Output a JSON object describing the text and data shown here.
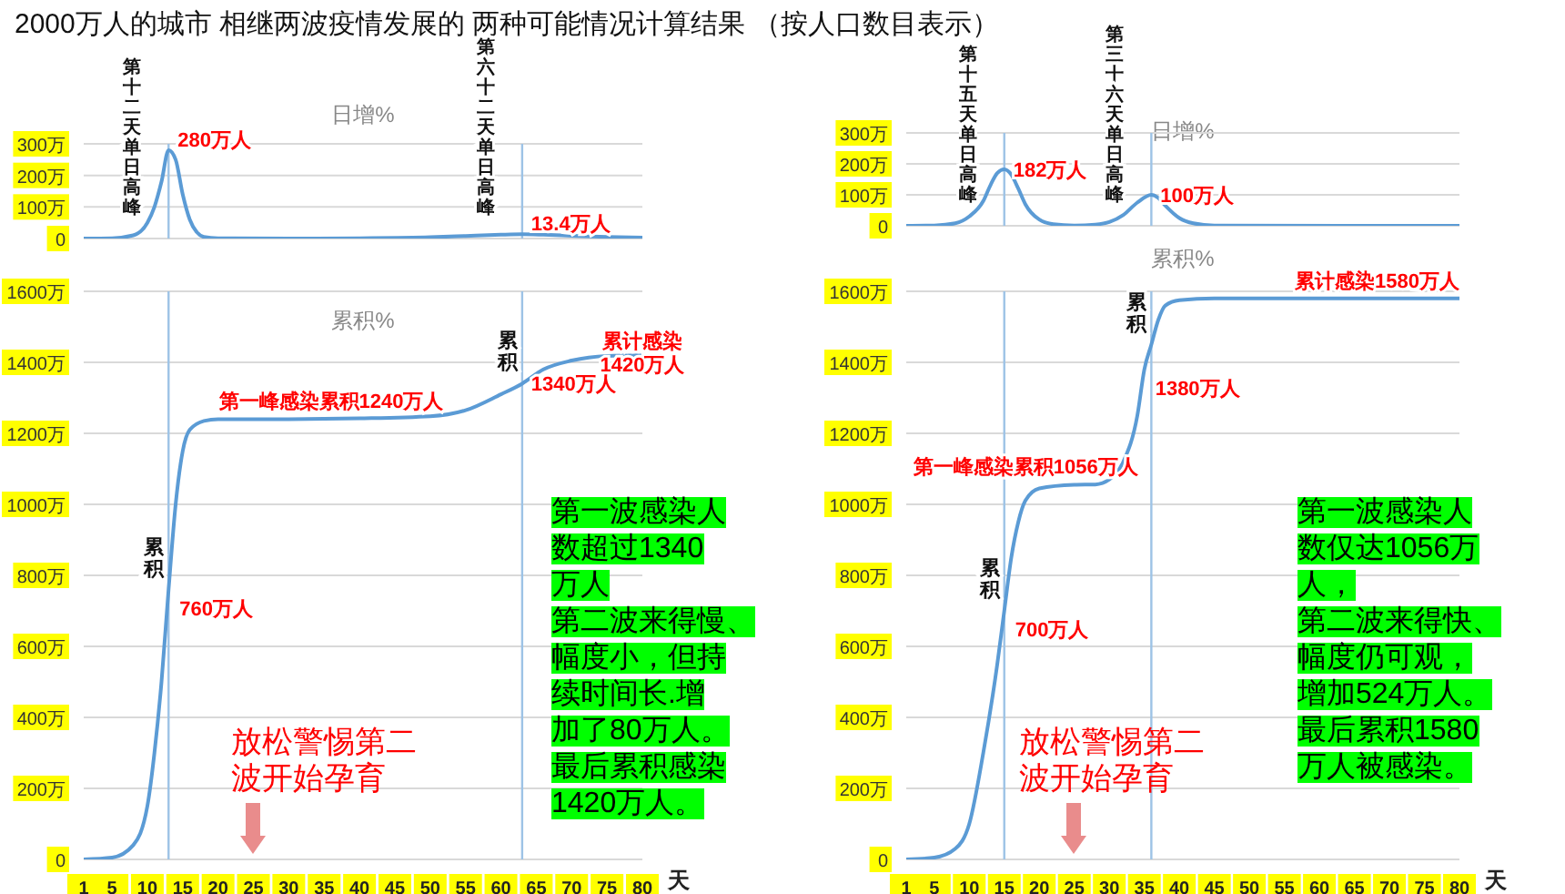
{
  "chart_data": [
    {
      "type": "other",
      "title": "2000万人的城市 相继两波疫情发展的 两种可能情况计算结果 （按人口数目表示）"
    },
    {
      "type": "line",
      "title": "日增%",
      "color": "#5b9bd5",
      "grid": "y",
      "tick_labels": "y",
      "xlim": [
        1,
        80
      ],
      "ylim": [
        0,
        300
      ],
      "yticks": [
        {
          "value": 0,
          "label": "0"
        },
        {
          "value": 100,
          "label": "100万"
        },
        {
          "value": 200,
          "label": "200万"
        },
        {
          "value": 300,
          "label": "300万"
        }
      ],
      "x": [
        1,
        5,
        8,
        10,
        11,
        12,
        13,
        14,
        15,
        16,
        17,
        18,
        20,
        30,
        40,
        50,
        55,
        60,
        63,
        66,
        70,
        75,
        80
      ],
      "values": [
        0,
        1,
        10,
        50,
        100,
        180,
        280,
        250,
        140,
        60,
        20,
        5,
        1,
        0,
        1,
        4,
        8,
        12,
        13.4,
        12,
        9,
        5,
        3
      ],
      "ref_lines": [
        {
          "axis": "x",
          "value": 13,
          "label": "第十二天单日高峰",
          "color": "#9dc3e6"
        },
        {
          "axis": "x",
          "value": 63,
          "label": "第六十二天单日高峰",
          "color": "#9dc3e6"
        }
      ],
      "annotations": [
        {
          "text": "280万人",
          "x": 13,
          "y": 280
        },
        {
          "text": "13.4万人",
          "x": 63,
          "y": 13.4
        }
      ]
    },
    {
      "type": "line",
      "title": "累积%",
      "color": "#5b9bd5",
      "grid": "y",
      "xlabel": "天",
      "xlim": [
        1,
        80
      ],
      "ylim": [
        0,
        1600
      ],
      "xticks": [
        1,
        5,
        10,
        15,
        20,
        25,
        30,
        35,
        40,
        45,
        50,
        55,
        60,
        65,
        70,
        75,
        80
      ],
      "yticks": [
        {
          "value": 0,
          "label": "0"
        },
        {
          "value": 200,
          "label": "200万"
        },
        {
          "value": 400,
          "label": "400万"
        },
        {
          "value": 600,
          "label": "600万"
        },
        {
          "value": 800,
          "label": "800万"
        },
        {
          "value": 1000,
          "label": "1000万"
        },
        {
          "value": 1200,
          "label": "1200万"
        },
        {
          "value": 1400,
          "label": "1400万"
        },
        {
          "value": 1600,
          "label": "1600万"
        }
      ],
      "x": [
        1,
        5,
        8,
        10,
        11,
        12,
        13,
        14,
        15,
        16,
        18,
        20,
        30,
        40,
        50,
        55,
        60,
        63,
        66,
        70,
        75,
        80
      ],
      "values": [
        0,
        5,
        40,
        150,
        300,
        500,
        760,
        1000,
        1150,
        1210,
        1235,
        1240,
        1240,
        1242,
        1248,
        1265,
        1310,
        1340,
        1380,
        1405,
        1418,
        1420
      ],
      "ref_lines": [
        {
          "axis": "x",
          "value": 13,
          "label": "累积",
          "color": "#9dc3e6"
        },
        {
          "axis": "x",
          "value": 63,
          "label": "累积",
          "color": "#9dc3e6"
        }
      ],
      "annotations": [
        {
          "text": "760万人",
          "x": 13,
          "y": 760
        },
        {
          "text": "第一峰感染累积1240万人",
          "x": 36,
          "y": 1240
        },
        {
          "text": "1340万人",
          "x": 63,
          "y": 1340
        },
        {
          "text": "累计感染\n1420万人",
          "x": 80,
          "y": 1420
        },
        "第一波感染人数超过1340万人第二波来得慢、幅度小，但持续时间长.增加了80万人。最后累积感染1420万人。",
        "放松警惕第二波开始孕育"
      ]
    },
    {
      "type": "line",
      "title": "日增%",
      "color": "#5b9bd5",
      "grid": "y",
      "tick_labels": "y",
      "xlim": [
        1,
        80
      ],
      "ylim": [
        0,
        300
      ],
      "yticks": [
        {
          "value": 0,
          "label": "0"
        },
        {
          "value": 100,
          "label": "100万"
        },
        {
          "value": 200,
          "label": "200万"
        },
        {
          "value": 300,
          "label": "300万"
        }
      ],
      "x": [
        1,
        5,
        8,
        10,
        12,
        13,
        14,
        15,
        16,
        17,
        18,
        20,
        22,
        25,
        28,
        30,
        32,
        34,
        36,
        37,
        38,
        40,
        42,
        45,
        80
      ],
      "values": [
        0,
        1,
        8,
        30,
        80,
        130,
        170,
        182,
        165,
        120,
        70,
        20,
        5,
        1,
        4,
        12,
        35,
        75,
        100,
        90,
        65,
        25,
        8,
        1,
        0
      ],
      "ref_lines": [
        {
          "axis": "x",
          "value": 15,
          "label": "第十五天单日高峰",
          "color": "#9dc3e6"
        },
        {
          "axis": "x",
          "value": 36,
          "label": "第三十六天单日高峰",
          "color": "#9dc3e6"
        }
      ],
      "annotations": [
        {
          "text": "182万人",
          "x": 15,
          "y": 182
        },
        {
          "text": "100万人",
          "x": 36,
          "y": 100
        }
      ]
    },
    {
      "type": "line",
      "title": "累积%",
      "color": "#5b9bd5",
      "grid": "y",
      "xlabel": "天",
      "xlim": [
        1,
        80
      ],
      "ylim": [
        0,
        1600
      ],
      "xticks": [
        1,
        5,
        10,
        15,
        20,
        25,
        30,
        35,
        40,
        45,
        50,
        55,
        60,
        65,
        70,
        75,
        80
      ],
      "yticks": [
        {
          "value": 0,
          "label": "0"
        },
        {
          "value": 200,
          "label": "200万"
        },
        {
          "value": 400,
          "label": "400万"
        },
        {
          "value": 600,
          "label": "600万"
        },
        {
          "value": 800,
          "label": "800万"
        },
        {
          "value": 1000,
          "label": "1000万"
        },
        {
          "value": 1200,
          "label": "1200万"
        },
        {
          "value": 1400,
          "label": "1400万"
        },
        {
          "value": 1600,
          "label": "1600万"
        }
      ],
      "x": [
        1,
        5,
        8,
        10,
        12,
        14,
        15,
        16,
        17,
        18,
        20,
        25,
        28,
        30,
        32,
        34,
        35,
        36,
        37,
        38,
        40,
        45,
        80
      ],
      "values": [
        0,
        5,
        30,
        100,
        300,
        550,
        700,
        850,
        950,
        1010,
        1045,
        1055,
        1056,
        1070,
        1120,
        1250,
        1380,
        1450,
        1520,
        1560,
        1575,
        1580,
        1580
      ],
      "ref_lines": [
        {
          "axis": "x",
          "value": 15,
          "label": "累积",
          "color": "#9dc3e6"
        },
        {
          "axis": "x",
          "value": 36,
          "label": "累积",
          "color": "#9dc3e6"
        }
      ],
      "annotations": [
        {
          "text": "700万人",
          "x": 15,
          "y": 700
        },
        {
          "text": "第一峰感染累积1056万人",
          "x": 25,
          "y": 1056
        },
        {
          "text": "1380万人",
          "x": 35,
          "y": 1380
        },
        {
          "text": "累计感染1580万人",
          "x": 80,
          "y": 1580
        },
        "第一波感染人数仅达1056万人，第二波来得快、幅度仍可观，增加524万人。最后累积1580万人被感染。",
        "放松警惕第二波开始孕育"
      ]
    }
  ]
}
